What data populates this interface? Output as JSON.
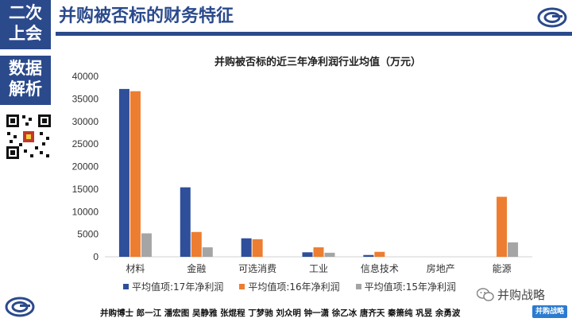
{
  "sidebar": {
    "top_label_line1": "二次",
    "top_label_line2": "上会",
    "mid_label_line1": "数据",
    "mid_label_line2": "解析"
  },
  "header": {
    "title": "并购被否标的财务特征"
  },
  "footer": {
    "names": "并购博士 郎一江 潘宏图 吴静雅 张焜程 丁梦驰 刘众明 钟一潇 徐乙冰 唐齐天 秦箫纯 巩昱 余勇波",
    "wechat_text": "并购战略",
    "brand_mark": "并购战略"
  },
  "colors": {
    "brand_blue": "#2b4a8c",
    "series_17": "#2f4f9a",
    "series_16": "#ed7d31",
    "series_15": "#a5a5a5"
  },
  "chart_data": {
    "type": "bar",
    "title": "并购被否标的近三年净利润行业均值（万元）",
    "categories": [
      "材料",
      "金融",
      "可选消费",
      "工业",
      "信息技术",
      "房地产",
      "能源"
    ],
    "series": [
      {
        "name": "平均值项:17年净利润",
        "values": [
          37200,
          15400,
          4100,
          1000,
          400,
          0,
          0
        ]
      },
      {
        "name": "平均值项:16年净利润",
        "values": [
          36700,
          5500,
          3900,
          2100,
          1100,
          0,
          13300
        ]
      },
      {
        "name": "平均值项:15年净利润",
        "values": [
          5200,
          2100,
          0,
          900,
          0,
          0,
          3200
        ]
      }
    ],
    "ylim": [
      0,
      40000
    ],
    "yticks": [
      "0",
      "5000",
      "10000",
      "15000",
      "20000",
      "25000",
      "30000",
      "35000",
      "40000"
    ],
    "grid": false,
    "legend_position": "bottom"
  }
}
